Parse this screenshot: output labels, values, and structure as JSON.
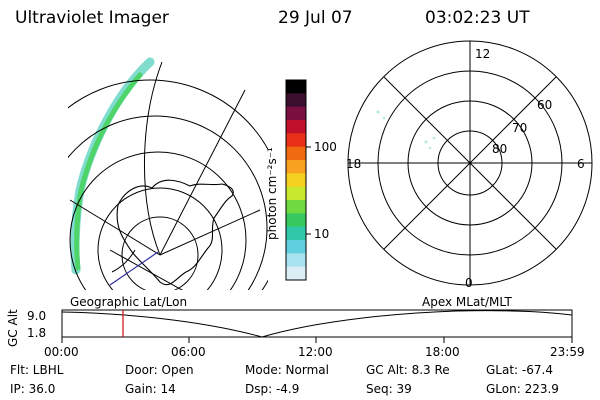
{
  "header": {
    "instrument": "Ultraviolet Imager",
    "date": "29 Jul 07",
    "time": "03:02:23 UT"
  },
  "colorbar": {
    "unit_label": "photon cm⁻²s⁻¹",
    "ticks": [
      "100",
      "10"
    ],
    "colors": [
      "#000000",
      "#3a0f2e",
      "#7a1040",
      "#c0102a",
      "#e83018",
      "#f06a10",
      "#f8a020",
      "#f4d020",
      "#c8e830",
      "#70d840",
      "#38c860",
      "#30c8a8",
      "#60d0e0",
      "#a8e4f0",
      "#dceff6"
    ]
  },
  "polar_plot": {
    "mlt_labels": {
      "top": "12",
      "bottom": "0",
      "left": "18",
      "right": "6"
    },
    "lat_labels": [
      "60",
      "70",
      "80"
    ]
  },
  "altitude_plot": {
    "left_caption": "Geographic Lat/Lon",
    "right_caption": "Apex MLat/MLT",
    "ylabel": "GC Alt",
    "y_ticks": [
      "9.0",
      "1.8"
    ],
    "x_ticks": [
      "00:00",
      "06:00",
      "12:00",
      "18:00",
      "23:59"
    ],
    "current_time_marker": "03:02"
  },
  "info": {
    "filter": "Flt: LBHL",
    "ip": "IP: 36.0",
    "door": "Door: Open",
    "gain": "Gain: 14",
    "mode": "Mode: Normal",
    "dsp": "Dsp:    -4.9",
    "gc_alt": "GC Alt: 8.3 Re",
    "seq": "Seq: 39",
    "glat": "GLat: -67.4",
    "glon": "GLon: 223.9"
  },
  "colors": {
    "aurora_green": "#4fd46a",
    "aurora_cyan": "#7fdccf",
    "marker_red": "#d01010",
    "projection_blue": "#3030a0"
  }
}
